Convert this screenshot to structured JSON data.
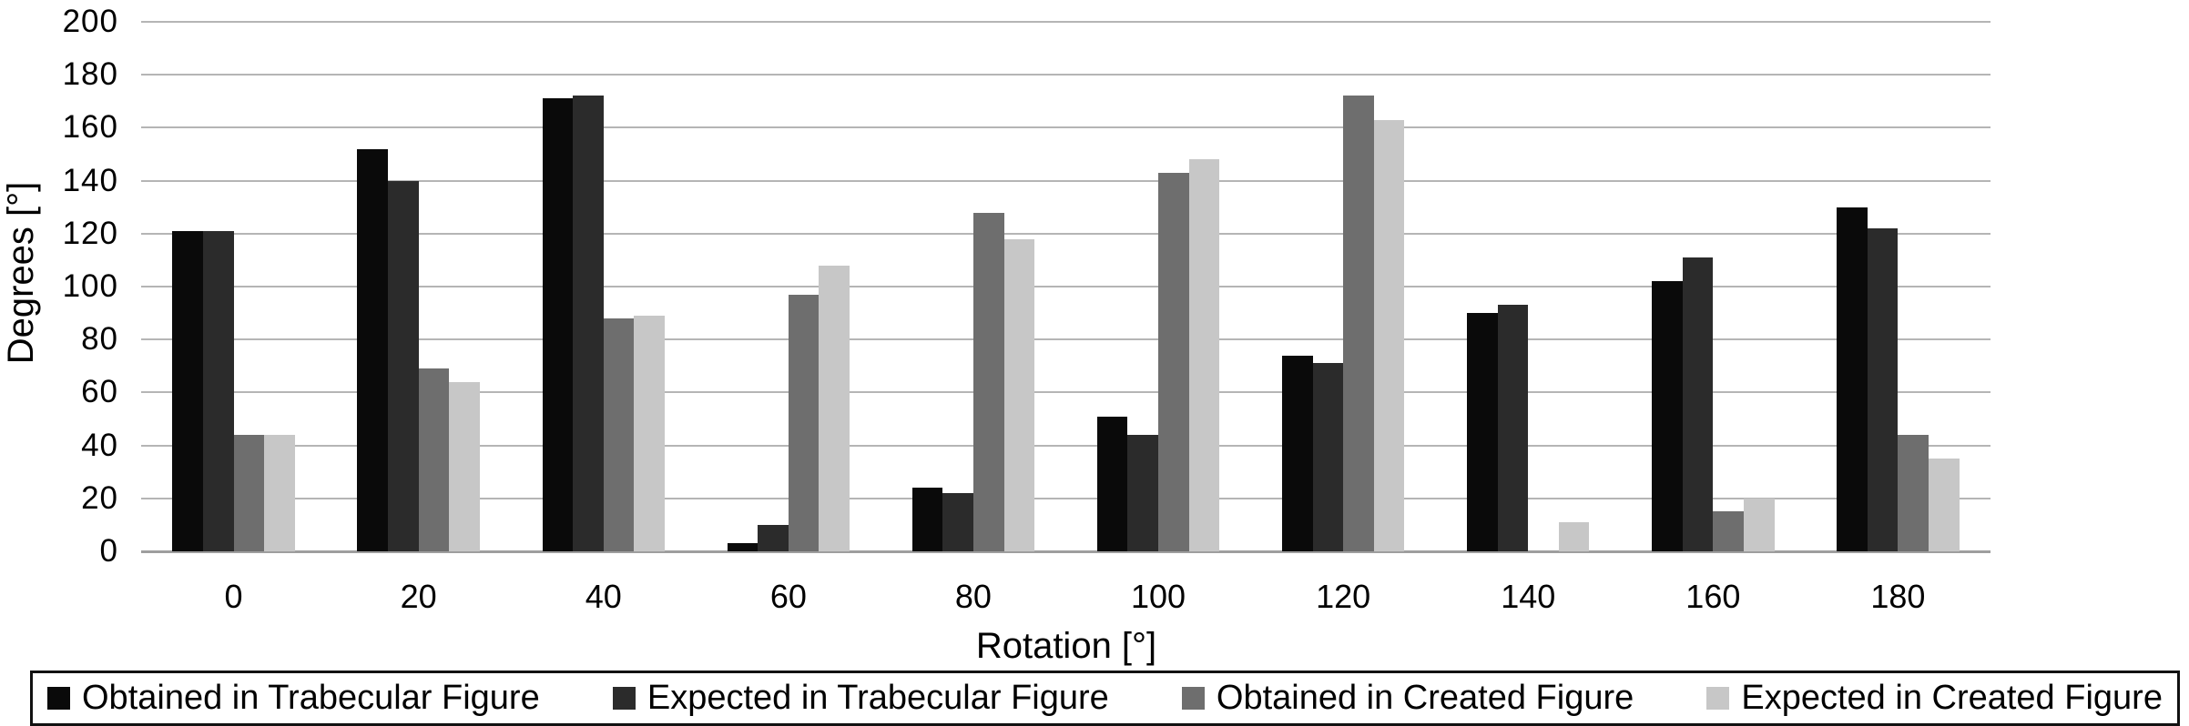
{
  "chart_data": {
    "type": "bar",
    "title": "",
    "xlabel": "Rotation [°]",
    "ylabel": "Degrees [°]",
    "categories": [
      "0",
      "20",
      "40",
      "60",
      "80",
      "100",
      "120",
      "140",
      "160",
      "180"
    ],
    "series": [
      {
        "name": "Obtained in Trabecular Figure",
        "color": "#0a0a0a",
        "values": [
          121,
          152,
          171,
          3,
          24,
          51,
          74,
          90,
          102,
          130
        ]
      },
      {
        "name": "Expected in Trabecular Figure",
        "color": "#2b2b2b",
        "values": [
          121,
          140,
          172,
          10,
          22,
          44,
          71,
          93,
          111,
          122
        ]
      },
      {
        "name": "Obtained in Created Figure",
        "color": "#6e6e6e",
        "values": [
          44,
          69,
          88,
          97,
          128,
          143,
          172,
          0,
          15,
          44
        ]
      },
      {
        "name": "Expected in Created Figure",
        "color": "#c7c7c7",
        "values": [
          44,
          64,
          89,
          108,
          118,
          148,
          163,
          11,
          20,
          35
        ]
      }
    ],
    "ylim": [
      0,
      200
    ],
    "ytick_step": 20,
    "grid": true,
    "legend_position": "bottom"
  },
  "colors": {
    "background": "#ffffff",
    "gridline": "#b5b5b5",
    "axis_line": "#9e9e9e",
    "text": "#000000",
    "legend_border": "#111111"
  }
}
